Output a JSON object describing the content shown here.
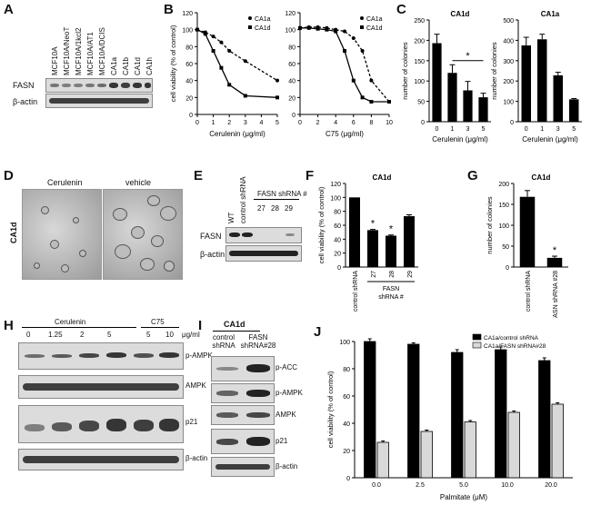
{
  "panels": {
    "A": {
      "label": "A",
      "lanes": [
        "MCF10A",
        "MCF10A/NeoT",
        "MCF10A/1kcl2",
        "MCF10A/AT1",
        "MCF10A/DCIS",
        "CA1a",
        "CA1b",
        "CA1d",
        "CA1h"
      ],
      "rows": [
        "FASN",
        "β-actin"
      ]
    },
    "B": {
      "label": "B"
    },
    "C": {
      "label": "C"
    },
    "D": {
      "label": "D",
      "titles": [
        "Cerulenin",
        "vehicle"
      ],
      "side": "CA1d"
    },
    "E": {
      "label": "E",
      "lanes": [
        "WT",
        "control shRNA"
      ],
      "group": "FASN shRNA #",
      "nums": [
        "27",
        "28",
        "29"
      ],
      "rows": [
        "FASN",
        "β-actin"
      ]
    },
    "F": {
      "label": "F"
    },
    "G": {
      "label": "G"
    },
    "H": {
      "label": "H",
      "group1": "Cerulenin",
      "group2": "C75",
      "doses": [
        "0",
        "1.25",
        "2",
        "5",
        "5",
        "10"
      ],
      "unit": "μg/ml",
      "rows": [
        "p-AMPK",
        "AMPK",
        "p21",
        "β-actin"
      ]
    },
    "I": {
      "label": "I",
      "title": "CA1d",
      "lane1": "control shRNA",
      "lane2": "FASN shRNA#28",
      "rows": [
        "p-ACC",
        "p-AMPK",
        "AMPK",
        "p21",
        "β-actin"
      ]
    },
    "J": {
      "label": "J"
    }
  },
  "chart_data": [
    {
      "id": "B1",
      "type": "line",
      "xlabel": "Cerulenin (μg/ml)",
      "ylabel": "cell viability (% of control)",
      "xlim": [
        0,
        5
      ],
      "ylim": [
        0,
        120
      ],
      "xticks": [
        0,
        1,
        2,
        3,
        4,
        5
      ],
      "yticks": [
        0,
        20,
        40,
        60,
        80,
        100,
        120
      ],
      "series": [
        {
          "name": "CA1a",
          "style": "dashed",
          "marker": "circle",
          "x": [
            0,
            0.5,
            1,
            1.5,
            2,
            3,
            5
          ],
          "y": [
            100,
            97,
            92,
            85,
            75,
            63,
            40
          ]
        },
        {
          "name": "CA1d",
          "style": "solid",
          "marker": "square",
          "x": [
            0,
            0.5,
            1,
            1.5,
            2,
            3,
            5
          ],
          "y": [
            100,
            95,
            75,
            55,
            35,
            22,
            20
          ]
        }
      ]
    },
    {
      "id": "B2",
      "type": "line",
      "xlabel": "C75 (μg/ml)",
      "ylabel": "",
      "xlim": [
        0,
        10
      ],
      "ylim": [
        0,
        120
      ],
      "xticks": [
        0,
        2,
        4,
        6,
        8,
        10
      ],
      "yticks": [
        0,
        20,
        40,
        60,
        80,
        100,
        120
      ],
      "series": [
        {
          "name": "CA1a",
          "style": "dashed",
          "marker": "circle",
          "x": [
            0,
            1,
            2,
            3,
            4,
            5,
            6,
            7,
            8,
            10
          ],
          "y": [
            102,
            103,
            103,
            102,
            100,
            98,
            90,
            75,
            40,
            15
          ]
        },
        {
          "name": "CA1d",
          "style": "solid",
          "marker": "square",
          "x": [
            0,
            1,
            2,
            3,
            4,
            5,
            6,
            7,
            8,
            10
          ],
          "y": [
            102,
            102,
            101,
            100,
            98,
            75,
            40,
            20,
            15,
            15
          ]
        }
      ]
    },
    {
      "id": "C1",
      "type": "bar",
      "title": "CA1d",
      "xlabel": "Cerulenin (μg/ml)",
      "ylabel": "number of colonies",
      "categories": [
        "0",
        "1",
        "3",
        "5"
      ],
      "values": [
        193,
        120,
        77,
        60
      ],
      "errors": [
        22,
        20,
        22,
        10
      ],
      "ylim": [
        0,
        250
      ],
      "yticks": [
        0,
        50,
        100,
        150,
        200,
        250
      ],
      "annotation": "*"
    },
    {
      "id": "C2",
      "type": "bar",
      "title": "CA1a",
      "xlabel": "Cerulenin (μg/ml)",
      "ylabel": "number of colonies",
      "categories": [
        "0",
        "1",
        "3",
        "5"
      ],
      "values": [
        375,
        405,
        228,
        110
      ],
      "errors": [
        40,
        25,
        15,
        4
      ],
      "ylim": [
        0,
        500
      ],
      "yticks": [
        0,
        100,
        200,
        300,
        400,
        500
      ]
    },
    {
      "id": "F",
      "type": "bar",
      "title": "CA1d",
      "ylabel": "cell viability (% of control)",
      "categories": [
        "control shRNA",
        "27",
        "28",
        "29"
      ],
      "group_label": "FASN shRNA #",
      "values": [
        100,
        53,
        45,
        73
      ],
      "errors": [
        0,
        1,
        1,
        2
      ],
      "ylim": [
        0,
        120
      ],
      "yticks": [
        0,
        20,
        40,
        60,
        80,
        100,
        120
      ],
      "stars": [
        false,
        true,
        true,
        false
      ]
    },
    {
      "id": "G",
      "type": "bar",
      "title": "CA1d",
      "ylabel": "number of colonies",
      "categories": [
        "control shRNA",
        "FASN shRNA #28"
      ],
      "values": [
        168,
        22
      ],
      "errors": [
        15,
        4
      ],
      "ylim": [
        0,
        200
      ],
      "yticks": [
        0,
        50,
        100,
        150,
        200
      ],
      "stars": [
        false,
        true
      ]
    },
    {
      "id": "J",
      "type": "bar",
      "xlabel": "Palmitate (μM)",
      "ylabel": "cell viability (% of control)",
      "categories": [
        "0.0",
        "2.5",
        "5.0",
        "10.0",
        "20.0"
      ],
      "ylim": [
        0,
        100
      ],
      "yticks": [
        0,
        20,
        40,
        60,
        80,
        100
      ],
      "series": [
        {
          "name": "CA1a/control shRNA",
          "color": "#000000",
          "values": [
            100,
            98,
            92,
            94,
            86
          ],
          "errors": [
            2,
            1,
            2,
            2,
            2
          ]
        },
        {
          "name": "CA1a/FASN shRNA#28",
          "color": "#d9d9d9",
          "values": [
            26,
            34,
            41,
            48,
            54
          ],
          "errors": [
            1,
            1,
            1,
            1,
            1
          ]
        }
      ]
    }
  ]
}
